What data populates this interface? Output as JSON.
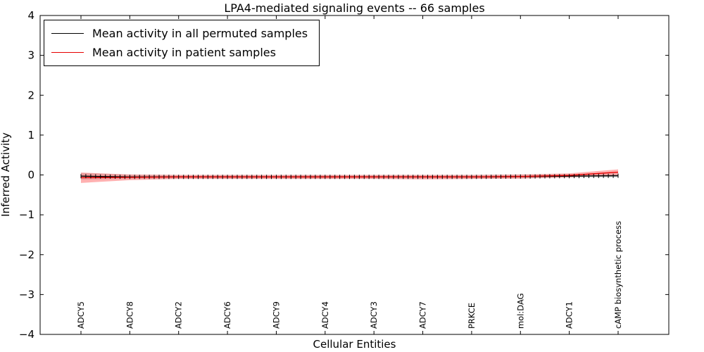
{
  "chart_data": {
    "type": "line",
    "title": "LPA4-mediated signaling events -- 66 samples",
    "xlabel": "Cellular Entities",
    "ylabel": "Inferred Activity",
    "ylim": [
      -4,
      4
    ],
    "yticks": [
      -4,
      -3,
      -2,
      -1,
      0,
      1,
      2,
      3,
      4
    ],
    "ytick_labels": [
      "−4",
      "−3",
      "−2",
      "−1",
      "0",
      "1",
      "2",
      "3",
      "4"
    ],
    "categories": [
      "ADCY5",
      "ADCY8",
      "ADCY2",
      "ADCY6",
      "ADCY9",
      "ADCY4",
      "ADCY3",
      "ADCY7",
      "PRKCE",
      "mol:DAG",
      "ADCY1",
      "cAMP biosynthetic process"
    ],
    "series": [
      {
        "name": "Mean activity in all permuted samples",
        "color": "#000000",
        "values": [
          -0.03,
          -0.05,
          -0.05,
          -0.05,
          -0.05,
          -0.05,
          -0.05,
          -0.05,
          -0.05,
          -0.04,
          -0.03,
          -0.02
        ]
      },
      {
        "name": "Mean activity in patient samples",
        "color": "#e60000",
        "values": [
          -0.07,
          -0.06,
          -0.05,
          -0.05,
          -0.05,
          -0.05,
          -0.05,
          -0.05,
          -0.05,
          -0.04,
          -0.01,
          0.07
        ]
      }
    ],
    "bands": [
      {
        "name": "permuted-samples-range",
        "color": "rgba(130,130,130,0.25)",
        "upper": [
          0.05,
          0.01,
          0.0,
          0.0,
          0.0,
          0.0,
          0.0,
          0.0,
          0.0,
          0.01,
          0.02,
          0.03
        ],
        "lower": [
          -0.12,
          -0.1,
          -0.1,
          -0.1,
          -0.1,
          -0.1,
          -0.1,
          -0.1,
          -0.1,
          -0.09,
          -0.07,
          -0.06
        ]
      },
      {
        "name": "patient-samples-range",
        "color": "rgba(255,50,50,0.38)",
        "upper": [
          0.06,
          0.01,
          0.0,
          0.0,
          0.0,
          0.0,
          0.0,
          0.0,
          0.0,
          0.01,
          0.04,
          0.14
        ],
        "lower": [
          -0.2,
          -0.13,
          -0.1,
          -0.1,
          -0.1,
          -0.1,
          -0.1,
          -0.11,
          -0.1,
          -0.09,
          -0.06,
          0.0
        ]
      }
    ],
    "legend_position": "upper left",
    "grid": false
  }
}
